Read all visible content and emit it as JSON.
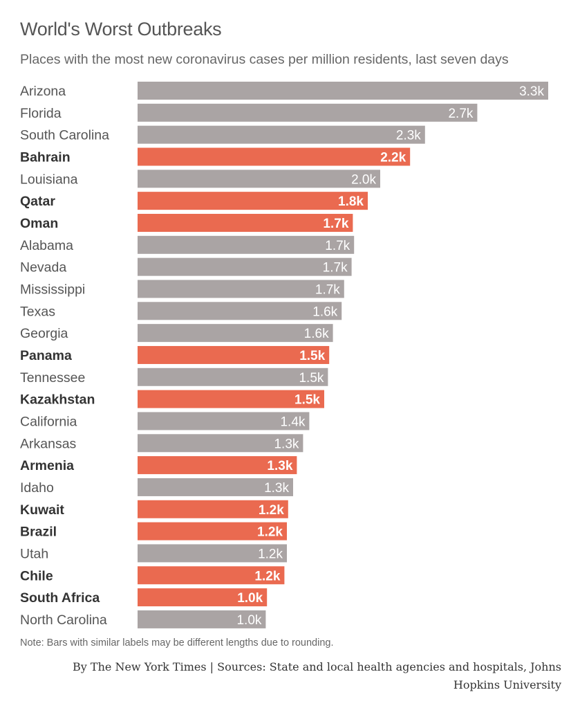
{
  "header": {
    "title": "World's Worst Outbreaks",
    "subtitle": "Places with the most new coronavirus cases per million residents, last seven days"
  },
  "footer": {
    "note": "Note: Bars with similar labels may be different lengths due to rounding.",
    "credit": "By The New York Times | Sources: State and local health agencies and hospitals, Johns Hopkins University"
  },
  "colors": {
    "us_state_bar": "#aaa4a4",
    "country_bar": "#ea6a50",
    "us_state_text": "#555555",
    "country_text": "#333333",
    "value_label": "#ffffff"
  },
  "chart_data": {
    "type": "bar",
    "orientation": "horizontal",
    "title": "World's Worst Outbreaks",
    "subtitle": "Places with the most new coronavirus cases per million residents, last seven days",
    "xlim": [
      0,
      3300
    ],
    "grid": false,
    "categories": [
      "Arizona",
      "Florida",
      "South Carolina",
      "Bahrain",
      "Louisiana",
      "Qatar",
      "Oman",
      "Alabama",
      "Nevada",
      "Mississippi",
      "Texas",
      "Georgia",
      "Panama",
      "Tennessee",
      "Kazakhstan",
      "California",
      "Arkansas",
      "Armenia",
      "Idaho",
      "Kuwait",
      "Brazil",
      "Utah",
      "Chile",
      "South Africa",
      "North Carolina"
    ],
    "values": [
      3300,
      2730,
      2310,
      2190,
      1950,
      1850,
      1730,
      1740,
      1720,
      1660,
      1640,
      1570,
      1540,
      1530,
      1500,
      1380,
      1330,
      1280,
      1250,
      1210,
      1200,
      1200,
      1180,
      1040,
      1030
    ],
    "value_labels": [
      "3.3k",
      "2.7k",
      "2.3k",
      "2.2k",
      "2.0k",
      "1.8k",
      "1.7k",
      "1.7k",
      "1.7k",
      "1.7k",
      "1.6k",
      "1.6k",
      "1.5k",
      "1.5k",
      "1.5k",
      "1.4k",
      "1.3k",
      "1.3k",
      "1.3k",
      "1.2k",
      "1.2k",
      "1.2k",
      "1.2k",
      "1.0k",
      "1.0k"
    ],
    "group": [
      "us",
      "us",
      "us",
      "country",
      "us",
      "country",
      "country",
      "us",
      "us",
      "us",
      "us",
      "us",
      "country",
      "us",
      "country",
      "us",
      "us",
      "country",
      "us",
      "country",
      "country",
      "us",
      "country",
      "country",
      "us"
    ]
  }
}
